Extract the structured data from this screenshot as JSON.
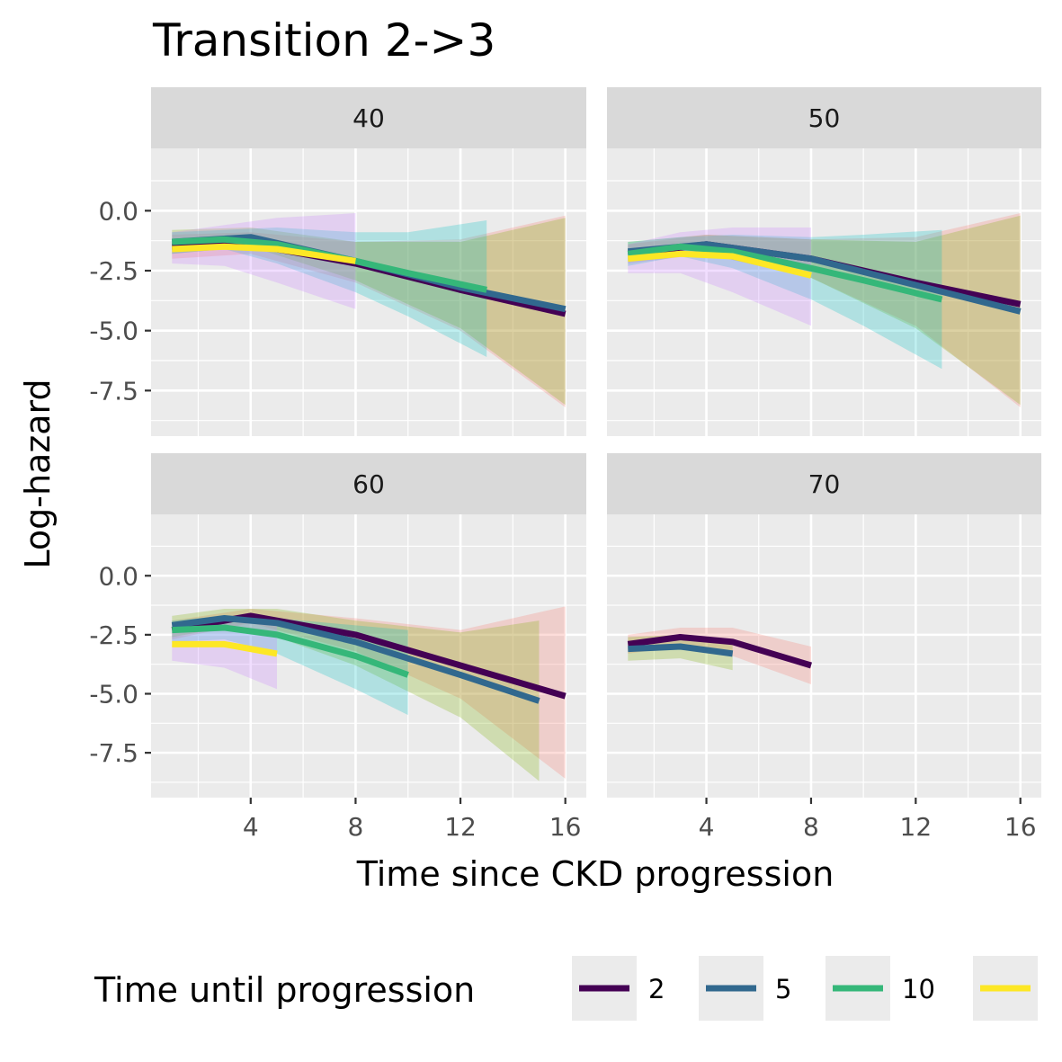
{
  "chart_data": {
    "type": "line",
    "title": "Transition 2->3",
    "xlabel": "Time since CKD progression",
    "ylabel": "Log-hazard",
    "xlim": [
      0.2,
      16.8
    ],
    "ylim": [
      -9.4,
      2.6
    ],
    "x_ticks": [
      4,
      8,
      12,
      16
    ],
    "x_tick_labels": [
      "4",
      "8",
      "12",
      "16"
    ],
    "y_ticks": [
      0,
      -2.5,
      -5,
      -7.5
    ],
    "y_tick_labels": [
      "0.0",
      "-2.5",
      "-5.0",
      "-7.5"
    ],
    "grid": true,
    "legend": {
      "title": "Time until progression",
      "position": "bottom",
      "entries": [
        {
          "label": "2",
          "color": "#440154"
        },
        {
          "label": "5",
          "color": "#31688E"
        },
        {
          "label": "10",
          "color": "#35B779"
        },
        {
          "label": "",
          "color": "#FDE725"
        }
      ]
    },
    "band_colors": {
      "2": "#F8766D",
      "5": "#7CAE00",
      "10": "#00BFC4",
      "20": "#C77CFF"
    },
    "panels": [
      {
        "label": "40",
        "series": [
          {
            "key": "2",
            "x": [
              1,
              4,
              8,
              12,
              16
            ],
            "y": [
              -1.5,
              -1.4,
              -2.2,
              -3.3,
              -4.3
            ],
            "lower": [
              -2.0,
              -1.8,
              -3.0,
              -5.0,
              -8.2
            ],
            "upper": [
              -1.0,
              -0.9,
              -1.3,
              -1.2,
              -0.2
            ]
          },
          {
            "key": "5",
            "x": [
              1,
              4,
              8,
              12,
              16
            ],
            "y": [
              -1.3,
              -1.1,
              -2.1,
              -3.2,
              -4.1
            ],
            "lower": [
              -1.8,
              -1.5,
              -2.9,
              -4.9,
              -8.1
            ],
            "upper": [
              -0.8,
              -0.7,
              -1.3,
              -1.3,
              -0.3
            ]
          },
          {
            "key": "10",
            "x": [
              1,
              3,
              5,
              8,
              10,
              13
            ],
            "y": [
              -1.3,
              -1.2,
              -1.4,
              -2.1,
              -2.6,
              -3.3
            ],
            "lower": [
              -1.8,
              -1.6,
              -2.2,
              -3.4,
              -4.4,
              -6.1
            ],
            "upper": [
              -0.9,
              -0.8,
              -0.7,
              -0.9,
              -0.9,
              -0.4
            ]
          },
          {
            "key": "20",
            "x": [
              1,
              3,
              5,
              8
            ],
            "y": [
              -1.6,
              -1.5,
              -1.6,
              -2.1
            ],
            "lower": [
              -2.2,
              -2.3,
              -3.0,
              -4.1
            ],
            "upper": [
              -0.9,
              -0.6,
              -0.3,
              -0.1
            ]
          }
        ]
      },
      {
        "label": "50",
        "series": [
          {
            "key": "2",
            "x": [
              1,
              4,
              8,
              12,
              16
            ],
            "y": [
              -1.8,
              -1.4,
              -2.0,
              -3.0,
              -3.9
            ],
            "lower": [
              -2.2,
              -1.8,
              -2.8,
              -4.8,
              -8.2
            ],
            "upper": [
              -1.4,
              -1.0,
              -1.2,
              -1.1,
              -0.1
            ]
          },
          {
            "key": "5",
            "x": [
              1,
              4,
              8,
              12,
              16
            ],
            "y": [
              -1.7,
              -1.4,
              -2.0,
              -3.1,
              -4.2
            ],
            "lower": [
              -2.1,
              -1.8,
              -2.8,
              -4.9,
              -8.1
            ],
            "upper": [
              -1.3,
              -1.0,
              -1.2,
              -1.3,
              -0.2
            ]
          },
          {
            "key": "10",
            "x": [
              1,
              3,
              5,
              8,
              10,
              13
            ],
            "y": [
              -1.8,
              -1.5,
              -1.7,
              -2.4,
              -2.9,
              -3.7
            ],
            "lower": [
              -2.3,
              -1.9,
              -2.4,
              -3.7,
              -4.8,
              -6.6
            ],
            "upper": [
              -1.3,
              -1.1,
              -1.0,
              -1.1,
              -1.0,
              -0.8
            ]
          },
          {
            "key": "20",
            "x": [
              1,
              3,
              5,
              8
            ],
            "y": [
              -2.0,
              -1.8,
              -1.9,
              -2.7
            ],
            "lower": [
              -2.6,
              -2.6,
              -3.4,
              -4.8
            ],
            "upper": [
              -1.4,
              -0.9,
              -0.7,
              -0.7
            ]
          }
        ]
      },
      {
        "label": "60",
        "series": [
          {
            "key": "2",
            "x": [
              1,
              4,
              8,
              12,
              16
            ],
            "y": [
              -2.3,
              -1.7,
              -2.5,
              -3.8,
              -5.1
            ],
            "lower": [
              -2.7,
              -2.0,
              -3.2,
              -5.2,
              -8.6
            ],
            "upper": [
              -1.9,
              -1.4,
              -1.8,
              -2.3,
              -1.3
            ]
          },
          {
            "key": "5",
            "x": [
              1,
              3,
              5,
              8,
              12,
              15
            ],
            "y": [
              -2.1,
              -1.8,
              -2.0,
              -2.8,
              -4.2,
              -5.3
            ],
            "lower": [
              -2.6,
              -2.2,
              -2.6,
              -3.8,
              -6.0,
              -8.7
            ],
            "upper": [
              -1.7,
              -1.4,
              -1.4,
              -1.9,
              -2.4,
              -1.9
            ]
          },
          {
            "key": "10",
            "x": [
              1,
              3,
              5,
              8,
              10
            ],
            "y": [
              -2.3,
              -2.2,
              -2.5,
              -3.4,
              -4.2
            ],
            "lower": [
              -2.8,
              -2.7,
              -3.3,
              -4.8,
              -5.9
            ],
            "upper": [
              -1.9,
              -1.7,
              -1.8,
              -2.1,
              -2.3
            ]
          },
          {
            "key": "20",
            "x": [
              1,
              3,
              5
            ],
            "y": [
              -2.9,
              -2.9,
              -3.3
            ],
            "lower": [
              -3.6,
              -3.9,
              -4.8
            ],
            "upper": [
              -2.2,
              -2.0,
              -1.9
            ]
          }
        ]
      },
      {
        "label": "70",
        "series": [
          {
            "key": "2",
            "x": [
              1,
              3,
              5,
              8
            ],
            "y": [
              -2.9,
              -2.6,
              -2.8,
              -3.8
            ],
            "lower": [
              -3.3,
              -3.0,
              -3.4,
              -4.6
            ],
            "upper": [
              -2.5,
              -2.2,
              -2.2,
              -3.0
            ]
          },
          {
            "key": "5",
            "x": [
              1,
              3,
              5
            ],
            "y": [
              -3.1,
              -3.0,
              -3.3
            ],
            "lower": [
              -3.6,
              -3.5,
              -4.0
            ],
            "upper": [
              -2.6,
              -2.5,
              -2.7
            ]
          }
        ]
      }
    ]
  }
}
